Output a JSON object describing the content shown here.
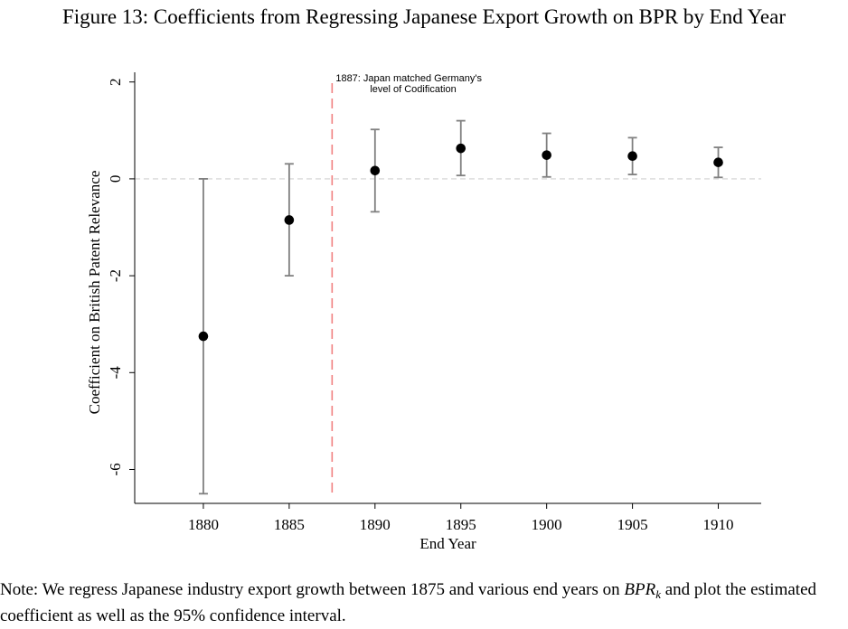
{
  "figure": {
    "title": "Figure 13: Coefficients from Regressing Japanese Export Growth on BPR by End Year",
    "note_prefix": "Note: We regress Japanese industry export growth between 1875 and various end years on ",
    "note_math": "BPR",
    "note_sub": "k",
    "note_suffix": " and plot the estimated coefficient as well as the 95% confidence interval."
  },
  "chart_data": {
    "type": "scatter",
    "title": "",
    "xlabel": "End Year",
    "ylabel": "Coefficient on British Patent Relevance",
    "xlim": [
      1876,
      1912.5
    ],
    "ylim": [
      -6.7,
      2.2
    ],
    "xticks": [
      1880,
      1885,
      1890,
      1895,
      1900,
      1905,
      1910
    ],
    "yticks": [
      2,
      0,
      -2,
      -4,
      -6
    ],
    "reference_line_y": 0,
    "vertical_line_x": 1887.5,
    "annotation": {
      "line1": "1887: Japan matched Germany's",
      "line2": "level of Codification"
    },
    "series": [
      {
        "x": [
          1880,
          1885,
          1890,
          1895,
          1900,
          1905,
          1910
        ],
        "y": [
          -3.25,
          -0.85,
          0.17,
          0.63,
          0.49,
          0.47,
          0.34
        ],
        "ci_low": [
          -6.5,
          -2.0,
          -0.68,
          0.07,
          0.04,
          0.09,
          0.03
        ],
        "ci_high": [
          0.0,
          0.31,
          1.02,
          1.2,
          0.94,
          0.85,
          0.65
        ]
      }
    ],
    "colors": {
      "point": "#000000",
      "ci": "#808080",
      "zero_line": "#d9d9d9",
      "vertical_line": "#f08080",
      "axis": "#000000"
    }
  }
}
